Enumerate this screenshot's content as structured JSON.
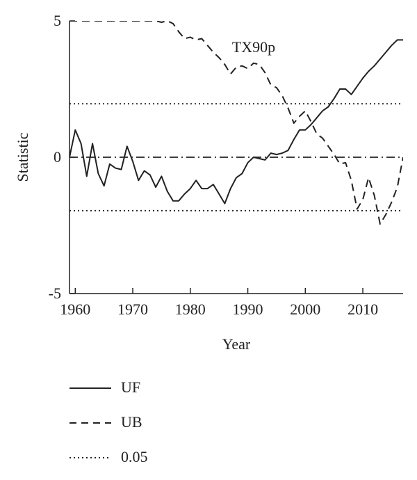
{
  "chart_data": {
    "type": "line",
    "annotation": "TX90p",
    "xlabel": "Year",
    "ylabel": "Statistic",
    "xlim": [
      1959,
      2017
    ],
    "ylim": [
      -5,
      5
    ],
    "xticks": [
      1960,
      1970,
      1980,
      1990,
      2000,
      2010
    ],
    "yticks": [
      5,
      0,
      -5
    ],
    "xtick_labels": [
      "1960",
      "1970",
      "1980",
      "1990",
      "2000",
      "2010"
    ],
    "ytick_labels": [
      "5",
      "0",
      "-5"
    ],
    "grid": false,
    "legend_position": "bottom",
    "series": [
      {
        "name": "UF",
        "style": "solid",
        "x": [
          1959,
          1960,
          1961,
          1962,
          1963,
          1964,
          1965,
          1966,
          1967,
          1968,
          1969,
          1970,
          1971,
          1972,
          1973,
          1974,
          1975,
          1976,
          1977,
          1978,
          1979,
          1980,
          1981,
          1982,
          1983,
          1984,
          1985,
          1986,
          1987,
          1988,
          1989,
          1990,
          1991,
          1992,
          1993,
          1994,
          1995,
          1996,
          1997,
          1998,
          1999,
          2000,
          2001,
          2002,
          2003,
          2004,
          2005,
          2006,
          2007,
          2008,
          2009,
          2010,
          2011,
          2012,
          2013,
          2014,
          2015,
          2016,
          2017
        ],
        "y": [
          0.0,
          1.0,
          0.5,
          -0.7,
          0.5,
          -0.6,
          -1.05,
          -0.25,
          -0.4,
          -0.45,
          0.4,
          -0.15,
          -0.85,
          -0.5,
          -0.65,
          -1.1,
          -0.7,
          -1.25,
          -1.6,
          -1.6,
          -1.35,
          -1.15,
          -0.85,
          -1.15,
          -1.15,
          -1.0,
          -1.35,
          -1.7,
          -1.15,
          -0.75,
          -0.6,
          -0.2,
          0.0,
          -0.05,
          -0.1,
          0.15,
          0.1,
          0.15,
          0.25,
          0.65,
          1.0,
          1.0,
          1.2,
          1.45,
          1.7,
          1.85,
          2.15,
          2.5,
          2.5,
          2.3,
          2.6,
          2.9,
          3.15,
          3.35,
          3.6,
          3.85,
          4.1,
          4.3,
          4.3
        ]
      },
      {
        "name": "UB",
        "style": "dashed",
        "x": [
          1959,
          1960,
          1961,
          1962,
          1963,
          1964,
          1965,
          1966,
          1967,
          1968,
          1969,
          1970,
          1971,
          1972,
          1973,
          1974,
          1975,
          1976,
          1977,
          1978,
          1979,
          1980,
          1981,
          1982,
          1983,
          1984,
          1985,
          1986,
          1987,
          1988,
          1989,
          1990,
          1991,
          1992,
          1993,
          1994,
          1995,
          1996,
          1997,
          1998,
          1999,
          2000,
          2001,
          2002,
          2003,
          2004,
          2005,
          2006,
          2007,
          2008,
          2009,
          2010,
          2011,
          2012,
          2013,
          2014,
          2015,
          2016,
          2017
        ],
        "y": [
          5.0,
          5.0,
          5.0,
          5.0,
          5.0,
          5.0,
          5.0,
          5.0,
          5.0,
          5.0,
          5.0,
          5.0,
          5.0,
          5.0,
          5.0,
          5.0,
          4.95,
          5.0,
          4.9,
          4.6,
          4.35,
          4.4,
          4.3,
          4.35,
          4.1,
          3.85,
          3.65,
          3.4,
          3.05,
          3.3,
          3.35,
          3.25,
          3.45,
          3.4,
          3.1,
          2.65,
          2.55,
          2.25,
          1.8,
          1.25,
          1.5,
          1.7,
          1.3,
          0.85,
          0.7,
          0.4,
          0.1,
          -0.25,
          -0.2,
          -0.85,
          -1.9,
          -1.55,
          -0.75,
          -1.4,
          -2.45,
          -2.1,
          -1.65,
          -1.1,
          0.0
        ]
      },
      {
        "name": "0.05",
        "style": "dotted",
        "lines_y": [
          1.96,
          -1.96
        ]
      }
    ],
    "reference_line": {
      "y": 0,
      "style": "dash-dot"
    }
  },
  "legend": {
    "uf_label": "UF",
    "ub_label": "UB",
    "sig_label": "0.05"
  }
}
